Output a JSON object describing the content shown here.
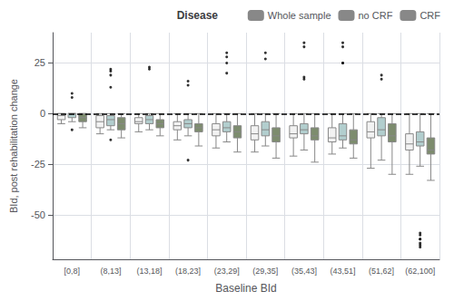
{
  "chart_data": {
    "type": "boxplot",
    "xlabel": "Baseline BId",
    "ylabel": "BId, post rehabilitation change",
    "categories": [
      "[0,8]",
      "(8,13]",
      "(13,18]",
      "(18,23]",
      "(23,29]",
      "(29,35]",
      "(35,43]",
      "(43,51]",
      "(51,62]",
      "(62,100]"
    ],
    "series": [
      {
        "name": "Whole sample",
        "color": "#f2f2f2",
        "q1": [
          -3,
          -7,
          -5,
          -8,
          -11,
          -13,
          -12,
          -14,
          -12,
          -18
        ],
        "med": [
          -1,
          -4,
          -4,
          -6,
          -8,
          -10,
          -10,
          -12,
          -9,
          -15
        ],
        "q3": [
          0,
          -1,
          -2,
          -4,
          -5,
          -6,
          -6,
          -7,
          -4,
          -10
        ],
        "whisk_lo": [
          -5,
          -10,
          -9,
          -13,
          -17,
          -19,
          -21,
          -20,
          -27,
          -30
        ],
        "whisk_hi": [
          0,
          0,
          0,
          0,
          0,
          0,
          0,
          0,
          0,
          0
        ]
      },
      {
        "name": "no CRF",
        "color": "#b2cece",
        "q1": [
          -2,
          -6,
          -5,
          -7,
          -9,
          -11,
          -10,
          -13,
          -11,
          -16
        ],
        "med": [
          0,
          -3,
          -3,
          -5,
          -7,
          -8,
          -8,
          -11,
          -8,
          -14
        ],
        "q3": [
          0,
          -1,
          -1,
          -3,
          -4,
          -4,
          -5,
          -5,
          -2,
          -9
        ],
        "whisk_lo": [
          -4,
          -8,
          -8,
          -11,
          -14,
          -16,
          -18,
          -17,
          -23,
          -26
        ],
        "whisk_hi": [
          0,
          0,
          0,
          0,
          0,
          0,
          0,
          0,
          0,
          0
        ]
      },
      {
        "name": "CRF",
        "color": "#7d8c6e",
        "q1": [
          -4,
          -8,
          -7,
          -9,
          -12,
          -14,
          -13,
          -15,
          -14,
          -20
        ],
        "med": [
          -2,
          -5,
          -5,
          -7,
          -9,
          -11,
          -11,
          -13,
          -11,
          -18
        ],
        "q3": [
          0,
          -2,
          -3,
          -5,
          -6,
          -7,
          -7,
          -8,
          -5,
          -12
        ],
        "whisk_lo": [
          -7,
          -12,
          -11,
          -16,
          -19,
          -22,
          -24,
          -22,
          -30,
          -33
        ],
        "whisk_hi": [
          0,
          0,
          0,
          0,
          0,
          0,
          0,
          0,
          0,
          0
        ]
      }
    ],
    "edge_color": "#888888",
    "outliers": {
      "color": "#000000",
      "categories": [
        "[0,8]",
        "[0,8]",
        "(8,13]",
        "(8,13]",
        "(8,13]",
        "(8,13]",
        "(13,18]",
        "(13,18]",
        "(18,23]",
        "(18,23]",
        "(23,29]",
        "(23,29]",
        "(23,29]",
        "(23,29]",
        "(29,35]",
        "(29,35]",
        "(35,43]",
        "(35,43]",
        "(35,43]",
        "(35,43]",
        "(43,51]",
        "(43,51]",
        "(43,51]",
        "(43,51]",
        "(51,62]",
        "(51,62]",
        "[0,8]",
        "(8,13]",
        "(18,23]",
        "(62,100]",
        "(62,100]",
        "(62,100]",
        "(62,100]",
        "(62,100]",
        "(62,100]",
        "(62,100]"
      ],
      "values": [
        10,
        8,
        22,
        21,
        19,
        13,
        23,
        22,
        16,
        14,
        30,
        28,
        25,
        20,
        30,
        27,
        35,
        33,
        18,
        17,
        35,
        33,
        25,
        25,
        19,
        17,
        -8,
        -13,
        -23,
        -60,
        -62,
        -64,
        -65,
        -66,
        -59,
        -62
      ]
    },
    "reference_line": {
      "y": 0,
      "color": "#000000",
      "line_style": "dashed"
    },
    "ylim": [
      -72,
      40
    ],
    "yticks": [
      25,
      0,
      -25,
      -50
    ],
    "grid": true,
    "legend": "upper right",
    "legend_title": "Disease"
  }
}
